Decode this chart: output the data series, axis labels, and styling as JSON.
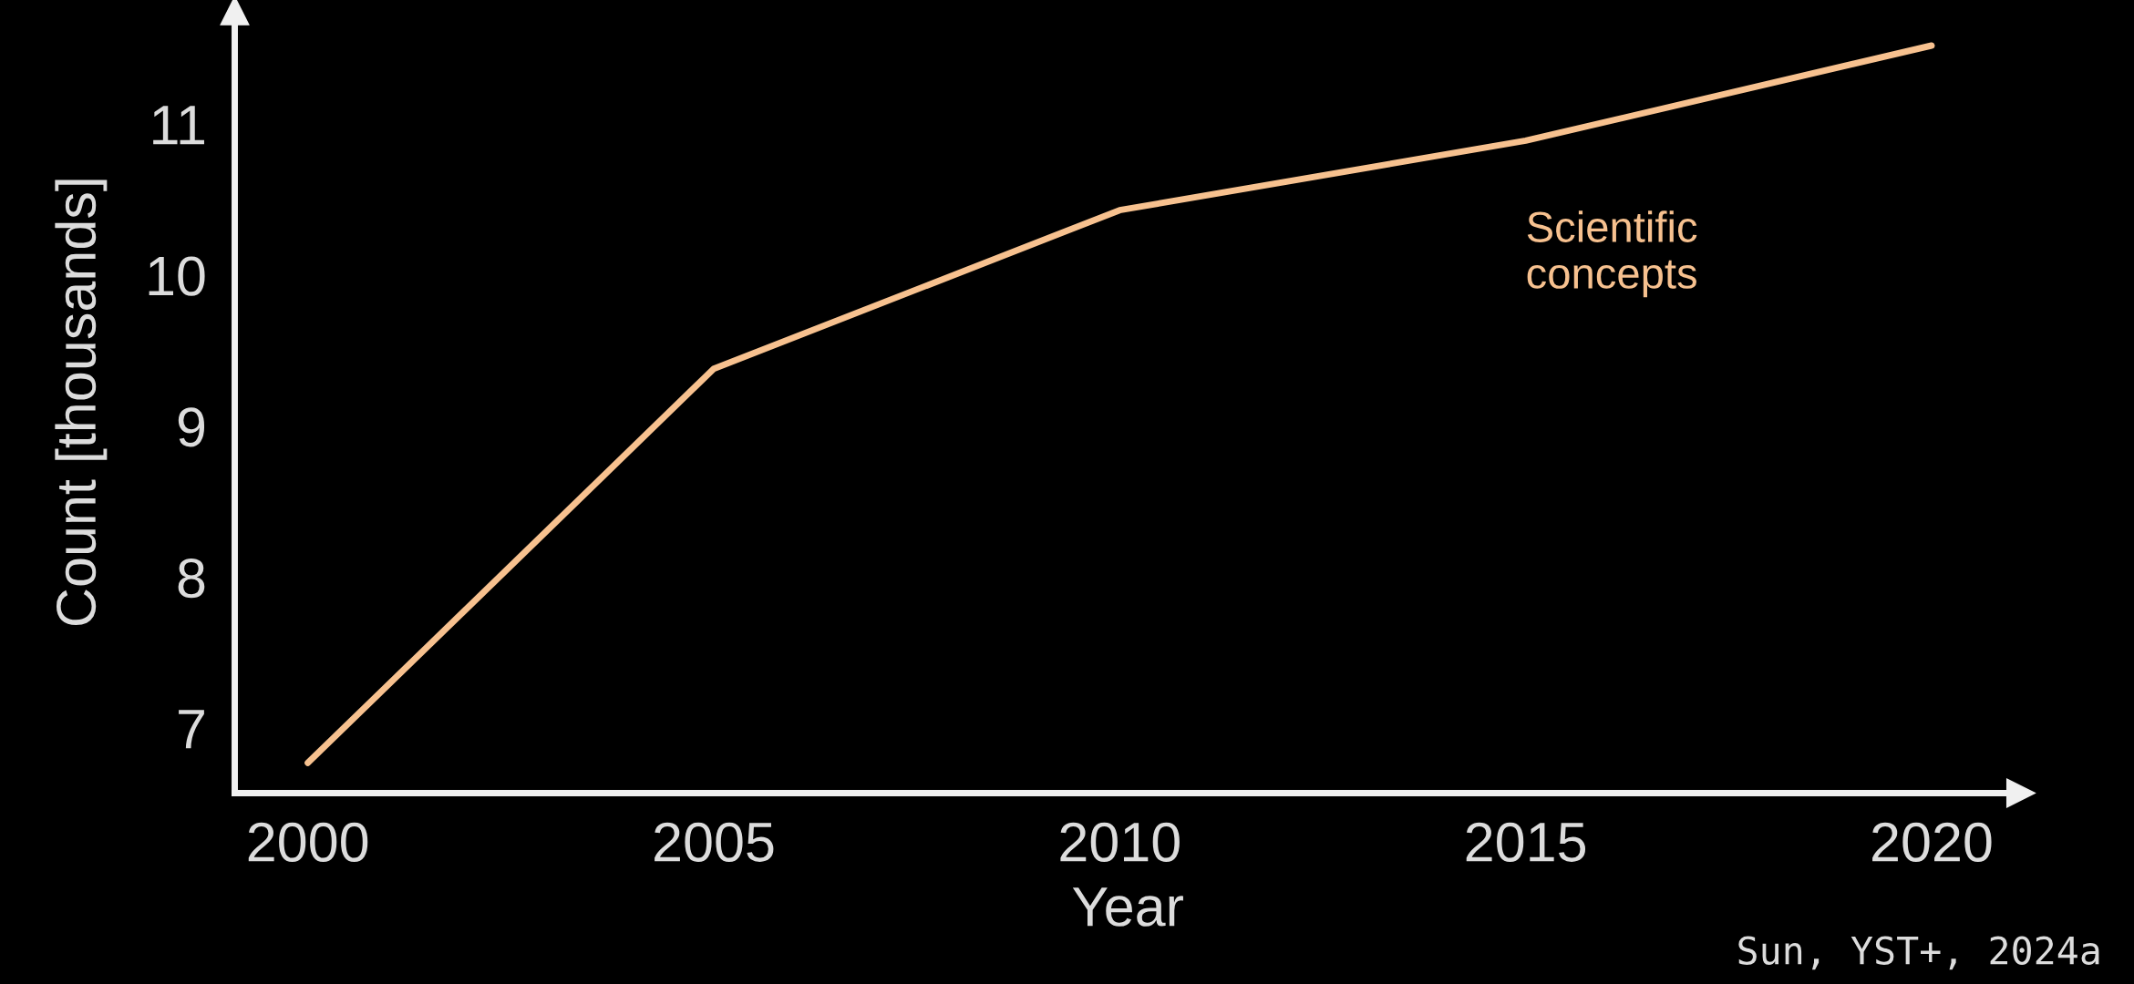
{
  "chart_data": {
    "type": "line",
    "xlabel": "Year",
    "ylabel": "Count [thousands]",
    "x": [
      2000,
      2005,
      2010,
      2015,
      2020
    ],
    "series": [
      {
        "name": "Scientific concepts",
        "color": "#f7c18f",
        "values": [
          6.77,
          9.38,
          10.43,
          10.89,
          11.52
        ]
      }
    ],
    "xlim": [
      1999.1,
      2021.1
    ],
    "ylim": [
      6.57,
      11.75
    ],
    "xticks": [
      2000,
      2005,
      2010,
      2015,
      2020
    ],
    "yticks": [
      7,
      8,
      9,
      10,
      11
    ],
    "grid": false,
    "legend": false,
    "marker": "none",
    "line_style": "solid",
    "annotations": [
      "Sun, YST+, 2024a"
    ]
  }
}
